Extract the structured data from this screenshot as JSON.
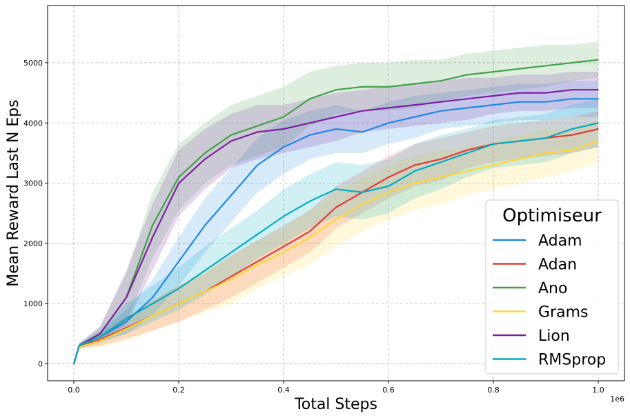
{
  "chart_data": {
    "type": "line",
    "xlabel": "Total Steps",
    "ylabel": "Mean Reward Last N Eps",
    "x_offset_label": "1e6",
    "xlim": [
      -0.05,
      1.05
    ],
    "ylim": [
      -280,
      5950
    ],
    "x_ticks": [
      0.0,
      0.2,
      0.4,
      0.6,
      0.8,
      1.0
    ],
    "x_tick_labels": [
      "0.0",
      "0.2",
      "0.4",
      "0.6",
      "0.8",
      "1.0"
    ],
    "y_ticks": [
      0,
      1000,
      2000,
      3000,
      4000,
      5000
    ],
    "y_tick_labels": [
      "0",
      "1000",
      "2000",
      "3000",
      "4000",
      "5000"
    ],
    "grid": true,
    "legend": {
      "title": "Optimiseur",
      "placement": "lower-right"
    },
    "x": [
      0.0,
      0.01,
      0.05,
      0.1,
      0.15,
      0.2,
      0.25,
      0.3,
      0.35,
      0.4,
      0.45,
      0.5,
      0.55,
      0.6,
      0.65,
      0.7,
      0.75,
      0.8,
      0.85,
      0.9,
      0.95,
      1.0
    ],
    "series": [
      {
        "name": "Adam",
        "color": "#1e88e5",
        "values": [
          0,
          300,
          450,
          700,
          1100,
          1700,
          2300,
          2800,
          3300,
          3600,
          3800,
          3900,
          3850,
          4000,
          4100,
          4200,
          4250,
          4300,
          4350,
          4350,
          4400,
          4400
        ],
        "spread": [
          0,
          40,
          80,
          200,
          300,
          400,
          450,
          450,
          450,
          450,
          400,
          400,
          350,
          350,
          350,
          300,
          300,
          300,
          300,
          300,
          300,
          300
        ]
      },
      {
        "name": "Adan",
        "color": "#e53935",
        "values": [
          0,
          300,
          400,
          600,
          800,
          1000,
          1200,
          1450,
          1700,
          1950,
          2200,
          2600,
          2850,
          3100,
          3300,
          3400,
          3550,
          3650,
          3700,
          3750,
          3800,
          3900
        ],
        "spread": [
          0,
          40,
          100,
          180,
          250,
          300,
          300,
          350,
          350,
          350,
          350,
          350,
          350,
          350,
          350,
          350,
          300,
          300,
          300,
          300,
          300,
          300
        ]
      },
      {
        "name": "Ano",
        "color": "#43a047",
        "values": [
          0,
          300,
          500,
          1100,
          2300,
          3100,
          3500,
          3800,
          3950,
          4100,
          4400,
          4550,
          4600,
          4600,
          4650,
          4700,
          4800,
          4850,
          4900,
          4950,
          5000,
          5050
        ],
        "spread": [
          0,
          40,
          120,
          400,
          550,
          550,
          500,
          500,
          500,
          500,
          450,
          400,
          400,
          400,
          400,
          350,
          350,
          350,
          350,
          350,
          300,
          300
        ]
      },
      {
        "name": "Grams",
        "color": "#fdd835",
        "values": [
          0,
          280,
          380,
          580,
          800,
          1000,
          1200,
          1400,
          1650,
          1850,
          2100,
          2400,
          2650,
          2850,
          3000,
          3100,
          3200,
          3300,
          3400,
          3500,
          3550,
          3700
        ],
        "spread": [
          0,
          40,
          100,
          200,
          250,
          300,
          350,
          400,
          400,
          400,
          450,
          450,
          450,
          450,
          450,
          450,
          400,
          400,
          400,
          400,
          350,
          350
        ]
      },
      {
        "name": "Lion",
        "color": "#7b1fa2",
        "values": [
          0,
          300,
          500,
          1100,
          2100,
          3000,
          3400,
          3700,
          3850,
          3900,
          4000,
          4100,
          4200,
          4250,
          4300,
          4350,
          4400,
          4450,
          4500,
          4500,
          4550,
          4550
        ],
        "spread": [
          0,
          40,
          120,
          450,
          550,
          550,
          500,
          450,
          450,
          400,
          400,
          400,
          350,
          350,
          350,
          350,
          350,
          300,
          300,
          300,
          300,
          300
        ]
      },
      {
        "name": "RMSprop",
        "color": "#00acc1",
        "values": [
          0,
          300,
          450,
          750,
          1000,
          1250,
          1550,
          1850,
          2150,
          2450,
          2700,
          2900,
          2850,
          2950,
          3200,
          3350,
          3500,
          3650,
          3700,
          3750,
          3900,
          4000
        ],
        "spread": [
          0,
          40,
          100,
          250,
          300,
          350,
          400,
          400,
          400,
          450,
          450,
          450,
          450,
          450,
          450,
          450,
          400,
          400,
          400,
          400,
          400,
          400
        ]
      }
    ]
  }
}
